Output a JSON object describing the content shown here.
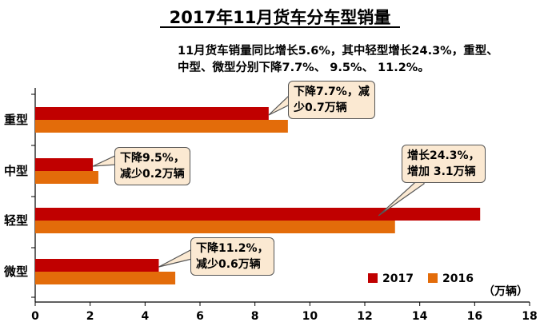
{
  "title": "2017年11月货车分车型销量",
  "subtitle_line1": "11月货车销量同比增长5.6%，其中轻型增长24.3%，重型、",
  "subtitle_line2": "中型、微型分别下降7.7%、 9.5%、 11.2%。",
  "unit_label": "（万辆）",
  "colors": {
    "s2017": "#c00000",
    "s2016": "#e36c0a",
    "note_bg": "#fbe9d2"
  },
  "chart_data": {
    "type": "bar",
    "orientation": "horizontal",
    "categories": [
      "重型",
      "中型",
      "轻型",
      "微型"
    ],
    "series": [
      {
        "name": "2017",
        "values": [
          8.5,
          2.1,
          16.2,
          4.5
        ]
      },
      {
        "name": "2016",
        "values": [
          9.2,
          2.3,
          13.1,
          5.1
        ]
      }
    ],
    "xlim": [
      0,
      18
    ],
    "xticks": [
      0,
      2,
      4,
      6,
      8,
      10,
      12,
      14,
      16,
      18
    ],
    "legend": "bottom-right",
    "grid": false
  },
  "annotations": [
    {
      "line1": "下降7.7%，减",
      "line2": "少0.7万辆"
    },
    {
      "line1": "下降9.5%，",
      "line2": "减少0.2万辆"
    },
    {
      "line1": "增长24.3%，",
      "line2": "增加 3.1万辆"
    },
    {
      "line1": "下降11.2%，",
      "line2": "减少0.6万辆"
    }
  ]
}
